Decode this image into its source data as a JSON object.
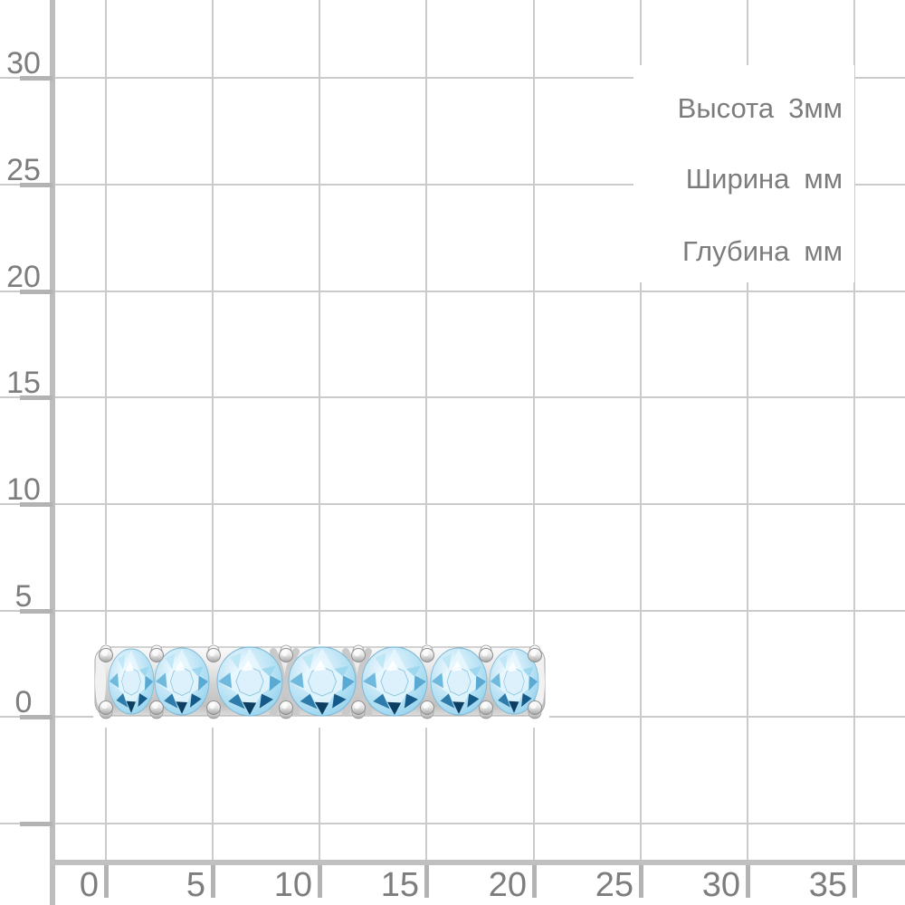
{
  "meta": {
    "description": "Product dimension diagram: side view of a silver ring with seven round light-blue gemstones placed on a millimeter measurement grid"
  },
  "grid": {
    "y_axis_labels": [
      "30",
      "25",
      "20",
      "15",
      "10",
      "5",
      "0"
    ],
    "x_axis_labels": [
      "0",
      "5",
      "10",
      "15",
      "20",
      "25",
      "30",
      "35"
    ],
    "label_color": "#7d7d7d",
    "thin_line_color": "#cbcbcb",
    "axis_line_color": "#bdbdbd",
    "tick_color": "#b3b3b3"
  },
  "annotations": [
    {
      "label": "Высота",
      "value": "3мм"
    },
    {
      "label": "Ширина",
      "value": "мм"
    },
    {
      "label": "Глубина",
      "value": "мм"
    }
  ],
  "product": {
    "kind": "eternity ring, side view",
    "gemstones_visible": 7,
    "gem_color": "#a9dcf2",
    "gem_dark_facet_color": "#155a88",
    "metal_color": "#d6d6d6"
  }
}
